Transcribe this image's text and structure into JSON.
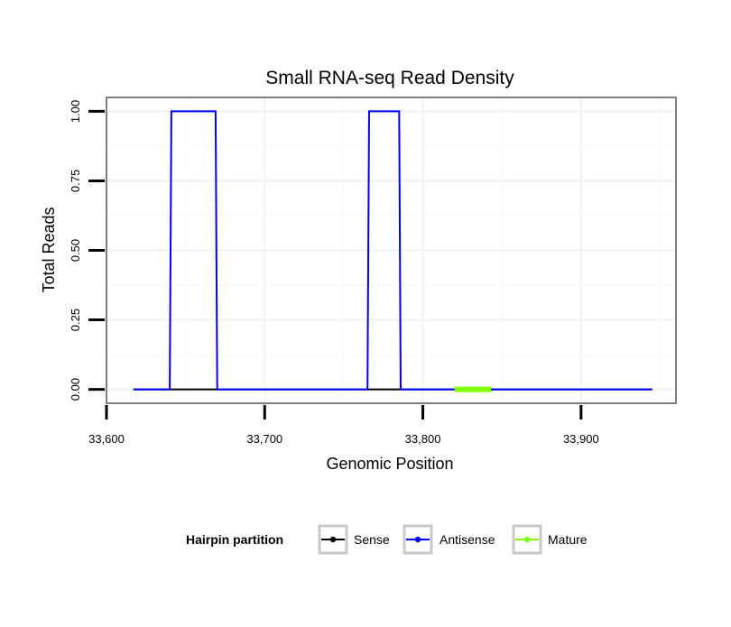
{
  "chart_data": {
    "type": "line",
    "title": "Small RNA-seq Read Density",
    "xlabel": "Genomic Position",
    "ylabel": "Total Reads",
    "xlim": [
      33600,
      33960
    ],
    "ylim": [
      -0.05,
      1.05
    ],
    "x_ticks": [
      33600,
      33700,
      33800,
      33900
    ],
    "x_tick_labels": [
      "33,600",
      "33,700",
      "33,800",
      "33,900"
    ],
    "y_ticks": [
      0,
      0.25,
      0.5,
      0.75,
      1.0
    ],
    "y_tick_labels": [
      "0.00",
      "0.25",
      "0.50",
      "0.75",
      "1.00"
    ],
    "grid": true,
    "legend_position": "bottom",
    "legend_title": "Hairpin partition",
    "series": [
      {
        "name": "Sense",
        "color": "#000000",
        "x": [
          33617,
          33945
        ],
        "y": [
          0,
          0
        ]
      },
      {
        "name": "Antisense",
        "color": "#0000ff",
        "x": [
          33617,
          33640,
          33641,
          33669,
          33670,
          33765,
          33766,
          33785,
          33786,
          33945
        ],
        "y": [
          0,
          0,
          1,
          1,
          0,
          0,
          1,
          1,
          0,
          0
        ]
      },
      {
        "name": "Mature",
        "color": "#7fff00",
        "x": [
          33820,
          33843
        ],
        "y": [
          0,
          0
        ]
      }
    ]
  }
}
